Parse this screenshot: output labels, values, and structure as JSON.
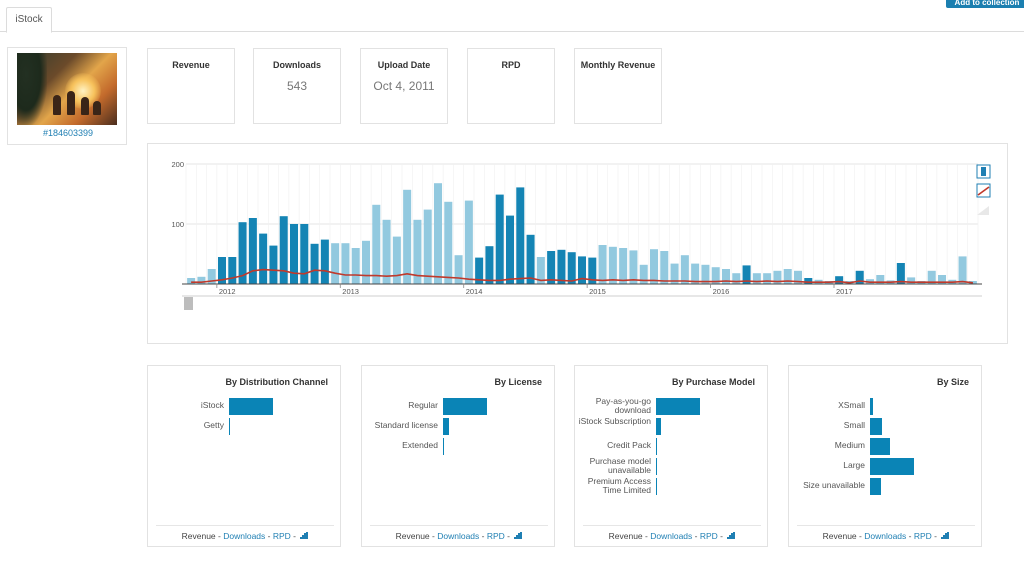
{
  "tabs": [
    "iStock"
  ],
  "top_button_label": "Add to collection",
  "asset": {
    "id_label": "#184603399"
  },
  "stats": [
    {
      "label": "Revenue",
      "value": ""
    },
    {
      "label": "Downloads",
      "value": "543"
    },
    {
      "label": "Upload Date",
      "value": "Oct 4, 2011"
    },
    {
      "label": "RPD",
      "value": ""
    },
    {
      "label": "Monthly Revenue",
      "value": ""
    }
  ],
  "chart_toolbar_icons": [
    "bar-chart-icon",
    "line-chart-icon",
    "area-chart-icon"
  ],
  "colors": {
    "accent": "#0a84b6",
    "bar_dark": "#1484b4",
    "bar_light": "#92c9df",
    "line": "#c0392b",
    "link": "#1f7fb3"
  },
  "chart_data": {
    "type": "bar",
    "ylim": [
      0,
      200
    ],
    "y_ticks": [
      "200",
      "100"
    ],
    "x_tick_labels": [
      "2012",
      "2013",
      "2014",
      "2015",
      "2016",
      "2017"
    ],
    "grid": true,
    "series": [
      {
        "values": [
          10,
          12,
          25,
          45,
          45,
          103,
          110,
          84,
          64,
          113,
          100,
          100,
          67,
          74,
          68,
          68,
          60,
          72,
          132,
          107,
          79,
          157,
          107,
          124,
          168,
          137,
          48,
          139,
          44,
          63,
          149,
          114,
          161,
          82,
          45,
          55,
          57,
          53,
          46,
          44,
          65,
          62,
          60,
          56,
          32,
          58,
          55,
          34,
          48,
          34,
          32,
          28,
          25,
          18,
          31,
          18,
          18,
          22,
          25,
          22,
          10,
          7,
          5,
          13,
          5,
          22,
          8,
          15,
          6,
          35,
          11,
          5,
          22,
          15,
          7,
          46,
          5
        ],
        "shade": [
          0,
          0,
          0,
          1,
          1,
          1,
          1,
          1,
          1,
          1,
          1,
          1,
          1,
          1,
          0,
          0,
          0,
          0,
          0,
          0,
          0,
          0,
          0,
          0,
          0,
          0,
          0,
          0,
          1,
          1,
          1,
          1,
          1,
          1,
          0,
          1,
          1,
          1,
          1,
          1,
          0,
          0,
          0,
          0,
          0,
          0,
          0,
          0,
          0,
          0,
          0,
          0,
          0,
          0,
          1,
          0,
          0,
          0,
          0,
          0,
          1,
          0,
          0,
          1,
          0,
          1,
          0,
          0,
          0,
          1,
          0,
          0,
          0,
          0,
          0,
          0,
          0
        ]
      },
      {
        "values": [
          3,
          3,
          5,
          7,
          10,
          14,
          22,
          24,
          23,
          22,
          18,
          17,
          23,
          22,
          18,
          15,
          15,
          14,
          14,
          13,
          14,
          17,
          14,
          13,
          12,
          11,
          10,
          8,
          7,
          6,
          6,
          8,
          9,
          10,
          6,
          7,
          6,
          5,
          9,
          7,
          6,
          7,
          6,
          7,
          6,
          6,
          5,
          5,
          5,
          4,
          4,
          4,
          5,
          4,
          5,
          4,
          5,
          4,
          5,
          4,
          3,
          3,
          3,
          4,
          2,
          5,
          3,
          3,
          3,
          4,
          3,
          3,
          3,
          3,
          3,
          4,
          2
        ]
      }
    ]
  },
  "breakdowns": [
    {
      "title": "By Distribution Channel",
      "rows": [
        {
          "label": "iStock",
          "value": 100
        },
        {
          "label": "Getty",
          "value": 2
        }
      ],
      "footer": {
        "active": "Revenue",
        "sep": " - ",
        "links": [
          "Downloads",
          "RPD"
        ]
      }
    },
    {
      "title": "By License",
      "rows": [
        {
          "label": "Regular",
          "value": 100
        },
        {
          "label": "Standard license",
          "value": 13
        },
        {
          "label": "Extended",
          "value": 1
        }
      ],
      "footer": {
        "active": "Revenue",
        "sep": " - ",
        "links": [
          "Downloads",
          "RPD"
        ]
      }
    },
    {
      "title": "By Purchase Model",
      "rows": [
        {
          "label": "Pay-as-you-go download",
          "value": 100
        },
        {
          "label": "iStock Subscription",
          "value": 11
        },
        {
          "label": "Credit Pack",
          "value": 2
        },
        {
          "label": "Purchase model unavailable",
          "value": 1
        },
        {
          "label": "Premium Access Time Limited",
          "value": 1
        }
      ],
      "footer": {
        "active": "Revenue",
        "sep": " - ",
        "links": [
          "Downloads",
          "RPD"
        ]
      }
    },
    {
      "title": "By Size",
      "rows": [
        {
          "label": "XSmall",
          "value": 6
        },
        {
          "label": "Small",
          "value": 27
        },
        {
          "label": "Medium",
          "value": 45
        },
        {
          "label": "Large",
          "value": 100
        },
        {
          "label": "Size unavailable",
          "value": 24
        }
      ],
      "footer": {
        "active": "Revenue",
        "sep": " - ",
        "links": [
          "Downloads",
          "RPD"
        ]
      }
    }
  ]
}
